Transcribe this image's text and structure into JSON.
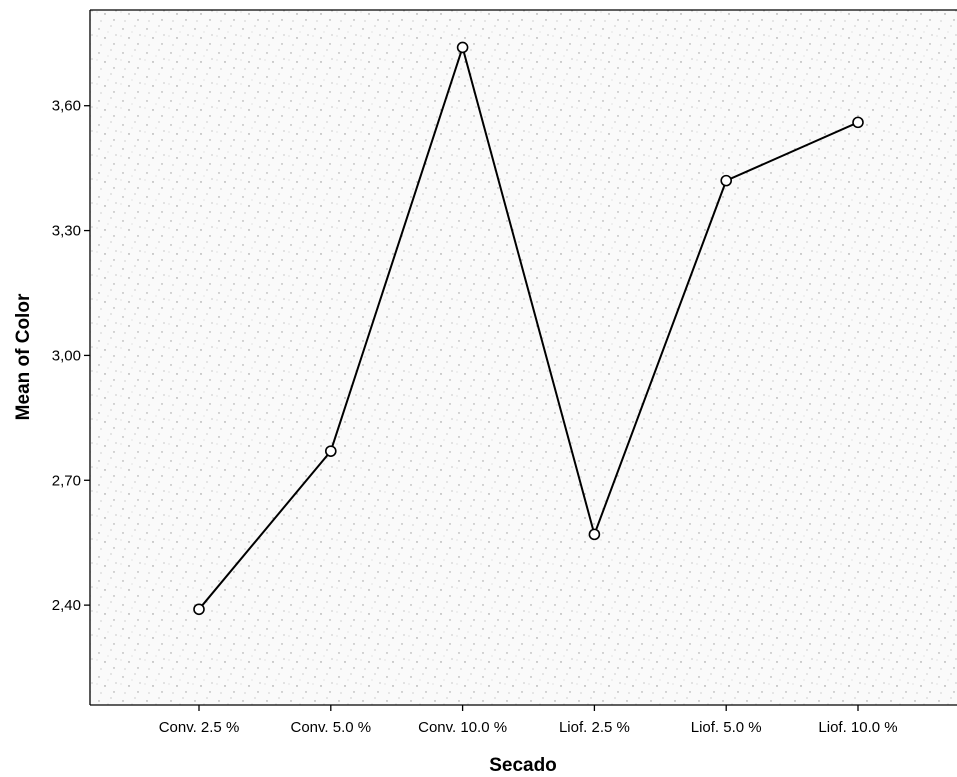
{
  "chart_data": {
    "type": "line",
    "xlabel": "Secado",
    "ylabel": "Mean of Color",
    "categories": [
      "Conv. 2.5 %",
      "Conv. 5.0 %",
      "Conv. 10.0 %",
      "Liof. 2.5 %",
      "Liof. 5.0 %",
      "Liof. 10.0 %"
    ],
    "values": [
      2.39,
      2.77,
      3.74,
      2.57,
      3.42,
      3.56
    ],
    "yticks": [
      2.4,
      2.7,
      3.0,
      3.3,
      3.6
    ],
    "ytick_labels": [
      "2,40",
      "2,70",
      "3,00",
      "3,30",
      "3,60"
    ],
    "ylim": [
      2.16,
      3.83
    ],
    "grid": false,
    "legend": "none",
    "line_color": "#000000",
    "marker": "open-circle",
    "background": "#f5f5f5"
  }
}
